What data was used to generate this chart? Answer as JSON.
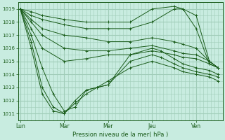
{
  "bg_color": "#c8ece0",
  "grid_color": "#a0ccb8",
  "line_color": "#1a5c1a",
  "xlabel": "Pression niveau de la mer( hPa )",
  "ylim": [
    1010.5,
    1019.5
  ],
  "yticks": [
    1011,
    1012,
    1013,
    1014,
    1015,
    1016,
    1017,
    1018,
    1019
  ],
  "day_labels": [
    "Lun",
    "Mar",
    "Mer",
    "Jeu",
    "Ven"
  ],
  "day_x": [
    0,
    1,
    2,
    3,
    4
  ],
  "xlim": [
    -0.05,
    4.6
  ],
  "series": [
    {
      "x": [
        0,
        0.25,
        0.5,
        1.0,
        1.5,
        2.0,
        2.5,
        3.0,
        3.5,
        3.7,
        4.0,
        4.3,
        4.5
      ],
      "y": [
        1019,
        1018.8,
        1018.5,
        1018.2,
        1018.0,
        1018.0,
        1018.0,
        1019.0,
        1019.2,
        1019.0,
        1018.5,
        1015.0,
        1014.5
      ]
    },
    {
      "x": [
        0,
        0.25,
        0.5,
        1.0,
        1.5,
        2.0,
        2.5,
        3.0,
        3.5,
        3.7,
        4.0,
        4.3,
        4.5
      ],
      "y": [
        1019,
        1018.5,
        1018.2,
        1017.8,
        1017.5,
        1017.5,
        1017.5,
        1018.0,
        1019.0,
        1019.0,
        1017.5,
        1014.8,
        1014.5
      ]
    },
    {
      "x": [
        0,
        0.25,
        0.5,
        1.0,
        1.5,
        2.0,
        2.5,
        3.0,
        3.5,
        3.7,
        4.0,
        4.3,
        4.5
      ],
      "y": [
        1019,
        1018.2,
        1017.5,
        1017.0,
        1016.8,
        1016.5,
        1016.5,
        1016.8,
        1016.5,
        1016.3,
        1016.0,
        1015.0,
        1014.5
      ]
    },
    {
      "x": [
        0,
        0.25,
        0.5,
        1.0,
        1.5,
        2.0,
        2.5,
        3.0,
        3.5,
        3.7,
        4.0,
        4.3,
        4.5
      ],
      "y": [
        1019,
        1018.0,
        1017.0,
        1016.0,
        1015.8,
        1015.8,
        1016.0,
        1016.2,
        1015.8,
        1015.6,
        1015.5,
        1015.0,
        1014.5
      ]
    },
    {
      "x": [
        0,
        0.25,
        0.5,
        1.0,
        1.5,
        2.0,
        2.5,
        3.0,
        3.5,
        3.7,
        4.0,
        4.3,
        4.5
      ],
      "y": [
        1019,
        1017.5,
        1016.0,
        1015.0,
        1015.2,
        1015.5,
        1015.5,
        1015.8,
        1015.5,
        1015.3,
        1015.2,
        1014.8,
        1014.5
      ]
    },
    {
      "x": [
        0,
        0.25,
        0.5,
        0.75,
        1.0,
        1.25,
        1.5,
        1.75,
        2.0,
        2.5,
        3.0,
        3.2,
        3.5,
        3.7,
        4.0,
        4.3,
        4.5
      ],
      "y": [
        1019,
        1017.0,
        1014.5,
        1012.5,
        1011.2,
        1011.5,
        1012.8,
        1013.0,
        1013.2,
        1015.5,
        1016.0,
        1015.8,
        1015.2,
        1014.8,
        1014.5,
        1014.3,
        1014.0
      ]
    },
    {
      "x": [
        0,
        0.25,
        0.5,
        0.75,
        1.0,
        1.25,
        1.5,
        1.75,
        2.0,
        2.5,
        3.0,
        3.2,
        3.5,
        3.7,
        4.0,
        4.3,
        4.5
      ],
      "y": [
        1019,
        1016.5,
        1013.0,
        1011.5,
        1011.0,
        1011.8,
        1012.5,
        1013.0,
        1013.2,
        1015.0,
        1015.5,
        1015.3,
        1014.8,
        1014.5,
        1014.2,
        1014.0,
        1013.8
      ]
    },
    {
      "x": [
        0,
        0.25,
        0.5,
        0.75,
        1.0,
        1.25,
        1.5,
        1.75,
        2.0,
        2.5,
        3.0,
        3.5,
        3.7,
        4.0,
        4.3,
        4.5
      ],
      "y": [
        1019,
        1016.0,
        1012.5,
        1011.2,
        1011.0,
        1012.0,
        1012.8,
        1013.0,
        1013.5,
        1014.5,
        1015.0,
        1014.5,
        1014.2,
        1014.0,
        1013.8,
        1013.5
      ]
    }
  ]
}
